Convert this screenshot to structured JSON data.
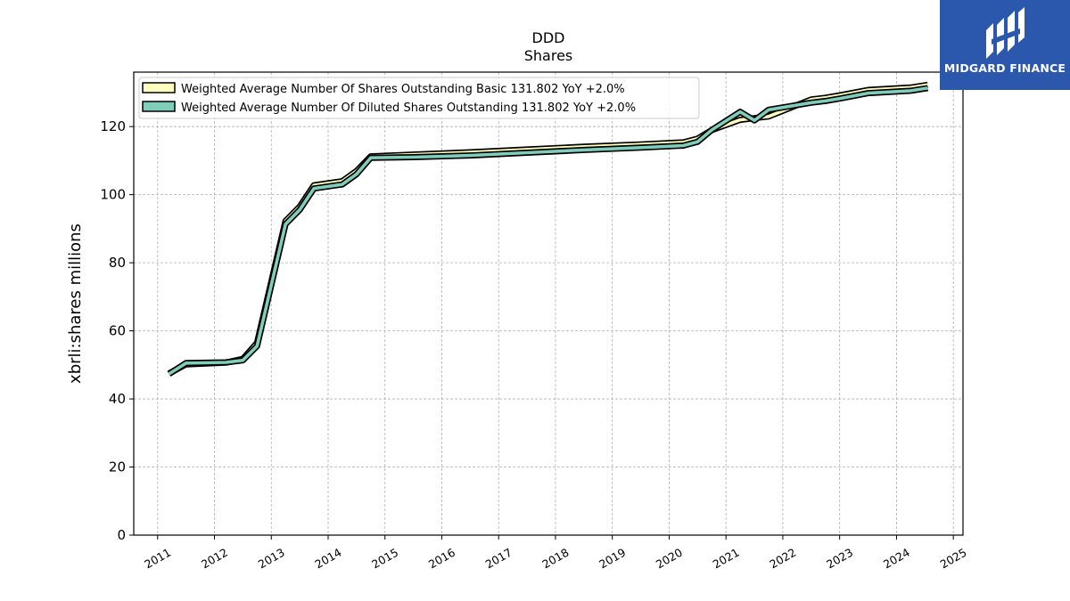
{
  "header": {
    "ticker": "DDD",
    "subtitle": "Shares"
  },
  "logo": {
    "text": "MIDGARD FINANCE",
    "icon": "midgard-logo-icon",
    "bg_color": "#2b58ad"
  },
  "chart_data": {
    "type": "line",
    "title": "DDD",
    "subtitle": "Shares",
    "xlabel": "",
    "ylabel": "xbrli:shares millions",
    "xlim": [
      2010.58,
      2025.17
    ],
    "ylim": [
      0,
      136
    ],
    "xticks": [
      "2011",
      "2012",
      "2013",
      "2014",
      "2015",
      "2016",
      "2017",
      "2018",
      "2019",
      "2020",
      "2021",
      "2022",
      "2023",
      "2024",
      "2025"
    ],
    "yticks": [
      0,
      20,
      40,
      60,
      80,
      100,
      120
    ],
    "grid": true,
    "legend_position": "upper-left",
    "series": [
      {
        "name": "Weighted Average Number Of Shares Outstanding Basic",
        "legend_label": "Weighted Average Number Of Shares Outstanding Basic  131.802 YoY +2.0%",
        "fill_color": "#ffffc0",
        "x": [
          2011.2,
          2011.5,
          2012.2,
          2012.5,
          2012.75,
          2013.25,
          2013.5,
          2013.75,
          2014.25,
          2014.5,
          2014.75,
          2015.5,
          2016.5,
          2017.5,
          2018.5,
          2019.5,
          2020.25,
          2020.5,
          2020.75,
          2021.25,
          2021.5,
          2021.75,
          2022.5,
          2022.75,
          2023.0,
          2023.25,
          2023.5,
          2024.25,
          2024.55
        ],
        "values": [
          47.0,
          49.7,
          50.2,
          51.3,
          56.0,
          91.8,
          96.0,
          102.3,
          103.5,
          106.5,
          110.8,
          111.3,
          112.0,
          112.8,
          113.6,
          114.3,
          114.9,
          116.0,
          118.5,
          121.5,
          122.0,
          122.5,
          127.5,
          128.0,
          128.7,
          129.5,
          130.3,
          131.0,
          131.8
        ]
      },
      {
        "name": "Weighted Average Number Of Diluted Shares Outstanding",
        "legend_label": "Weighted Average Number Of Diluted Shares Outstanding  131.802 YoY +2.0%",
        "fill_color": "#7fcdbb",
        "x": [
          2011.2,
          2011.5,
          2012.2,
          2012.5,
          2012.75,
          2013.25,
          2013.5,
          2013.75,
          2014.25,
          2014.5,
          2014.75,
          2015.5,
          2016.5,
          2017.5,
          2018.5,
          2019.5,
          2020.25,
          2020.5,
          2020.75,
          2021.25,
          2021.5,
          2021.75,
          2022.5,
          2022.75,
          2023.0,
          2023.25,
          2023.5,
          2024.25,
          2024.55
        ],
        "values": [
          47.8,
          51.0,
          51.2,
          51.8,
          56.0,
          91.8,
          96.0,
          102.3,
          103.5,
          106.5,
          111.3,
          111.5,
          112.0,
          112.8,
          113.6,
          114.3,
          114.9,
          116.0,
          119.5,
          124.8,
          122.3,
          125.4,
          127.5,
          128.0,
          128.7,
          129.5,
          130.3,
          131.0,
          131.8
        ]
      }
    ]
  }
}
